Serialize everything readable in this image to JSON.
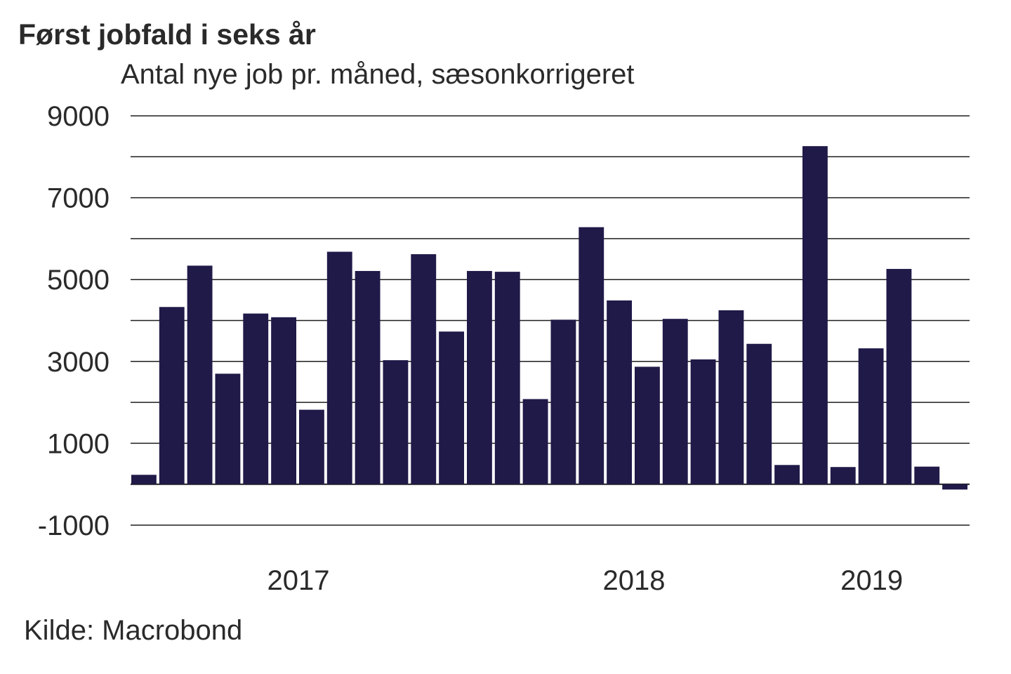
{
  "chart_data": {
    "type": "bar",
    "title": "Først jobfald i seks år",
    "subtitle": "Antal nye job pr. måned, sæsonkorrigeret",
    "source": "Kilde: Macrobond",
    "xlabel": "",
    "ylabel": "",
    "ylim": [
      -1000,
      9000
    ],
    "y_ticks": [
      9000,
      7000,
      5000,
      3000,
      1000,
      -1000
    ],
    "grid_values": [
      9000,
      8000,
      7000,
      6000,
      5000,
      4000,
      3000,
      2000,
      1000,
      0,
      -1000
    ],
    "year_labels": [
      {
        "label": "2017",
        "center_index": 6
      },
      {
        "label": "2018",
        "center_index": 18
      },
      {
        "label": "2019",
        "center_index": 26.5
      }
    ],
    "categories": [
      "2016-12",
      "2017-01",
      "2017-02",
      "2017-03",
      "2017-04",
      "2017-05",
      "2017-06",
      "2017-07",
      "2017-08",
      "2017-09",
      "2017-10",
      "2017-11",
      "2017-12",
      "2018-01",
      "2018-02",
      "2018-03",
      "2018-04",
      "2018-05",
      "2018-06",
      "2018-07",
      "2018-08",
      "2018-09",
      "2018-10",
      "2018-11",
      "2018-12",
      "2019-01",
      "2019-02",
      "2019-03",
      "2019-04",
      "2019-05"
    ],
    "values": [
      230,
      4330,
      5340,
      2700,
      4170,
      4080,
      1820,
      5680,
      5210,
      3030,
      5620,
      3730,
      5210,
      5190,
      2080,
      4020,
      6280,
      4490,
      2870,
      4040,
      3050,
      4250,
      3430,
      470,
      8260,
      420,
      3320,
      5260,
      430,
      -130
    ],
    "colors": {
      "bar": "#1f1a48",
      "grid": "#1e1e1e",
      "text": "#2a2a2a"
    }
  }
}
